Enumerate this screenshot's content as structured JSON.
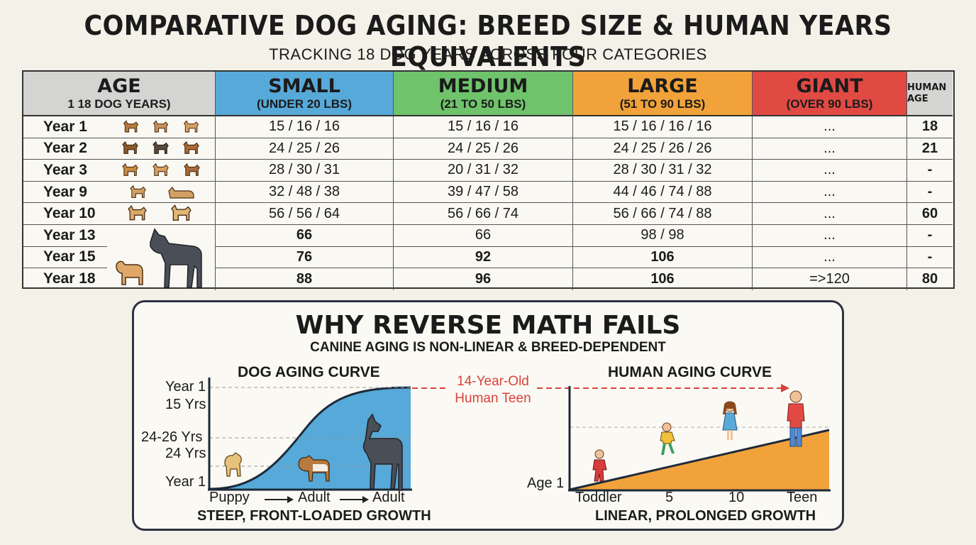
{
  "title": "COMPARATIVE DOG AGING: BREED SIZE & HUMAN YEARS EQUIVALENTS",
  "subtitle": "TRACKING 18 DOG YEARS ACROSS FOUR CATEGORIES",
  "table": {
    "headers": {
      "age": {
        "title": "AGE",
        "sub": "1 18 DOG YEARS)"
      },
      "small": {
        "title": "SMALL",
        "sub": "(UNDER 20 LBS)"
      },
      "medium": {
        "title": "MEDIUM",
        "sub": "(21 TO 50 LBS)"
      },
      "large": {
        "title": "LARGE",
        "sub": "(51 TO 90 LBS)"
      },
      "giant": {
        "title": "GIANT",
        "sub": "(OVER 90 LBS)"
      },
      "human": {
        "title": "HUMAN AGE"
      }
    },
    "header_colors": {
      "age": "#d4d4d2",
      "small": "#56a9d8",
      "medium": "#6ec36b",
      "large": "#f1a23a",
      "giant": "#e04a43",
      "human": "#d4d4d2"
    },
    "rows": [
      {
        "year": "Year 1",
        "small": "15 / 16 / 16",
        "medium": "15 / 16 / 16",
        "large": "15 / 16 / 16 / 16",
        "giant": "...",
        "human": "18"
      },
      {
        "year": "Year 2",
        "small": "24 / 25 / 26",
        "medium": "24 / 25 / 26",
        "large": "24 / 25 / 26 / 26",
        "giant": "...",
        "human": "21"
      },
      {
        "year": "Year 3",
        "small": "28 / 30 / 31",
        "medium": "20 / 31 / 32",
        "large": "28 / 30 / 31 / 32",
        "giant": "...",
        "human": "-"
      },
      {
        "year": "Year 9",
        "small": "32 / 48 / 38",
        "medium": "39 / 47 / 58",
        "large": "44 / 46 / 74 / 88",
        "giant": "...",
        "human": "-"
      },
      {
        "year": "Year 10",
        "small": "56 / 56 / 64",
        "medium": "56 / 66 / 74",
        "large": "56 / 66 / 74 / 88",
        "giant": "...",
        "human": "60"
      },
      {
        "year": "Year 13",
        "small": "66",
        "medium": "66",
        "large": "98 / 98",
        "giant": "...",
        "human": "-"
      },
      {
        "year": "Year 15",
        "small": "76",
        "medium": "92",
        "large": "106",
        "giant": "...",
        "human": "-"
      },
      {
        "year": "Year 18",
        "small": "88",
        "medium": "96",
        "large": "106",
        "giant": "=>120",
        "human": "80"
      }
    ]
  },
  "panel": {
    "title": "WHY REVERSE MATH FAILS",
    "subtitle": "CANINE AGING IS NON-LINEAR & BREED-DEPENDENT",
    "dog_chart": {
      "title": "DOG AGING CURVE",
      "y_labels": [
        "Year 1",
        "15 Yrs",
        "24-26 Yrs",
        "24 Yrs",
        "Year 1"
      ],
      "x_labels": [
        "Puppy",
        "Adult",
        "Adult"
      ],
      "caption": "STEEP, FRONT-LOADED GROWTH",
      "fill_color": "#56a9d8"
    },
    "arrow_label": [
      "14-Year-Old",
      "Human Teen"
    ],
    "human_chart": {
      "title": "HUMAN AGING CURVE",
      "y_labels": [
        "Age 1"
      ],
      "x_labels": [
        "Toddler",
        "5",
        "10",
        "Teen"
      ],
      "caption": "LINEAR, PROLONGED GROWTH",
      "fill_color": "#f1a23a"
    },
    "accent_red": "#d9423c"
  },
  "icons": {
    "row_icons": [
      "dog-icon",
      "dog-icon",
      "dog-icon"
    ],
    "big_dogs": [
      "dog-icon",
      "great-dane-icon"
    ],
    "dog_chart_figures": [
      "puppy-icon",
      "beagle-icon",
      "great-dane-icon"
    ],
    "human_chart_figures": [
      "toddler-icon",
      "child-icon",
      "girl-icon",
      "teen-icon"
    ]
  }
}
